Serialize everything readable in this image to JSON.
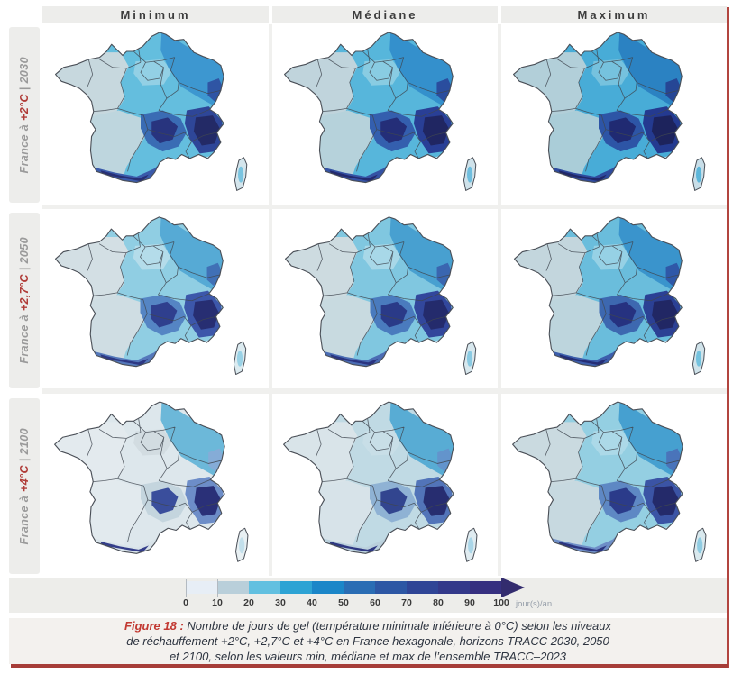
{
  "figure": {
    "columns": [
      "Minimum",
      "Médiane",
      "Maximum"
    ],
    "rows": [
      {
        "prefix": "France à ",
        "temp": "+2°C",
        "suffix": " | 2030"
      },
      {
        "prefix": "France à ",
        "temp": "+2,7°C",
        "suffix": " | 2050"
      },
      {
        "prefix": "France à ",
        "temp": "+4°C",
        "suffix": " | 2100"
      }
    ],
    "colorbar": {
      "ticks": [
        "0",
        "10",
        "20",
        "30",
        "40",
        "50",
        "60",
        "70",
        "80",
        "90",
        "100"
      ],
      "unit": "jour(s)/an",
      "segment_colors": [
        "#e7eef6",
        "#b9cfda",
        "#62c0e0",
        "#2da3d4",
        "#1b86c8",
        "#2a6db4",
        "#2d57a4",
        "#2f4596",
        "#33398a",
        "#363080"
      ],
      "arrow_color": "#332c6e"
    },
    "caption": {
      "label": "Figure 18 :",
      "lines": [
        "Nombre de jours de gel (température minimale inférieure à 0°C) selon les niveaux",
        "de réchauffement +2°C, +2,7°C et +4°C en France hexagonale, horizons TRACC 2030, 2050",
        "et 2100, selon les valeurs min, médiane et max de l’ensemble TRACC–2023"
      ]
    },
    "accent_colors": {
      "figure_red": "#c23a33",
      "frame_red": "#a63d38",
      "band_gray": "#ededeb",
      "caption_bg": "#f3f1ee"
    },
    "cells": [
      {
        "id": "map-2030-minimum",
        "scenario": "+2°C",
        "year": "2030",
        "stat": "Minimum",
        "palette": {
          "base": "#64bede",
          "west": "#c7d8de",
          "sw": "#bed6de",
          "paris": "#93d0e5",
          "ne": "#3d97d0",
          "med": "#dde9ef",
          "massifOuter": "#3a6cb4",
          "massif": "#28347e",
          "alpsOuter": "#2e4698",
          "alps": "#232a66",
          "vosges": "#2f55a4",
          "pyrOuter": "#3a5aaa",
          "pyr": "#272f74",
          "corsica": "#d4e5ec",
          "corsicaSpot": "#7ac4e0"
        }
      },
      {
        "id": "map-2030-mediane",
        "scenario": "+2°C",
        "year": "2030",
        "stat": "Médiane",
        "palette": {
          "base": "#57b6db",
          "west": "#c0d4dc",
          "sw": "#b6d2db",
          "paris": "#89cce2",
          "ne": "#3490cc",
          "med": "#d8e7ee",
          "massifOuter": "#345fae",
          "massif": "#242e78",
          "alpsOuter": "#293f96",
          "alps": "#202662",
          "vosges": "#2a4d9e",
          "pyrOuter": "#3452a4",
          "pyr": "#232a6e",
          "corsica": "#cfe2ea",
          "corsicaSpot": "#6fbede"
        }
      },
      {
        "id": "map-2030-maximum",
        "scenario": "+2°C",
        "year": "2030",
        "stat": "Maximum",
        "palette": {
          "base": "#48acd7",
          "west": "#b2cfd9",
          "sw": "#aacdd8",
          "paris": "#76c2de",
          "ne": "#2b82c2",
          "med": "#cfe1ea",
          "massifOuter": "#2d55a6",
          "massif": "#202a72",
          "alpsOuter": "#243a90",
          "alps": "#1d235c",
          "vosges": "#264695",
          "pyrOuter": "#2e4a9e",
          "pyr": "#202768",
          "corsica": "#c8dee8",
          "corsicaSpot": "#5cb6da"
        }
      },
      {
        "id": "map-2050-minimum",
        "scenario": "+2,7°C",
        "year": "2050",
        "stat": "Minimum",
        "palette": {
          "base": "#90cee3",
          "west": "#d3dfe4",
          "sw": "#cfdde3",
          "paris": "#b4dcea",
          "ne": "#56aad5",
          "med": "#e4edf2",
          "massifOuter": "#5585c4",
          "massif": "#2f3f8e",
          "alpsOuter": "#3c57aa",
          "alps": "#272e72",
          "vosges": "#4070b6",
          "pyrOuter": "#5478bb",
          "pyr": "#2d3884",
          "corsica": "#dcebf0",
          "corsicaSpot": "#9ad2e6"
        }
      },
      {
        "id": "map-2050-mediane",
        "scenario": "+2,7°C",
        "year": "2050",
        "stat": "Médiane",
        "palette": {
          "base": "#80c7e0",
          "west": "#cddbe0",
          "sw": "#c8dae0",
          "paris": "#a8d8e8",
          "ne": "#48a0d0",
          "med": "#dfeaf0",
          "massifOuter": "#4a7bbe",
          "massif": "#2a3a88",
          "alpsOuter": "#32479c",
          "alps": "#242b6c",
          "vosges": "#3a66b0",
          "pyrOuter": "#4a6cb4",
          "pyr": "#2a3480",
          "corsica": "#d8e8ee",
          "corsicaSpot": "#8acae2"
        }
      },
      {
        "id": "map-2050-maximum",
        "scenario": "+2,7°C",
        "year": "2050",
        "stat": "Maximum",
        "palette": {
          "base": "#6abddc",
          "west": "#c3d6dd",
          "sw": "#bdd5dd",
          "paris": "#96d1e5",
          "ne": "#3a94cc",
          "med": "#d8e7ee",
          "massifOuter": "#3d68b0",
          "massif": "#263280",
          "alpsOuter": "#2b4094",
          "alps": "#212764",
          "vosges": "#2f58a8",
          "pyrOuter": "#3c5eac",
          "pyr": "#252e76",
          "corsica": "#d0e3ea",
          "corsicaSpot": "#74c2de"
        }
      },
      {
        "id": "map-2100-minimum",
        "scenario": "+4°C",
        "year": "2100",
        "stat": "Minimum",
        "palette": {
          "base": "#dde7ec",
          "west": "#e3eaee",
          "sw": "#e2eaee",
          "paris": "#d2dce1",
          "ne": "#6cb8d9",
          "med": "#ebf1f4",
          "massifOuter": "#c4d5de",
          "massif": "#3a4e9c",
          "alpsOuter": "#6d8dc8",
          "alps": "#2a3078",
          "vosges": "#85acd7",
          "pyrOuter": "#d8e3e9",
          "pyr": "#343e8a",
          "corsica": "#e8f0f3",
          "corsicaSpot": "#c2dfeb"
        }
      },
      {
        "id": "map-2100-mediane",
        "scenario": "+4°C",
        "year": "2100",
        "stat": "Médiane",
        "palette": {
          "base": "#c0dae4",
          "west": "#d9e4e9",
          "sw": "#d7e3e9",
          "paris": "#c8dee7",
          "ne": "#58acd4",
          "med": "#e6eef2",
          "massifOuter": "#8fb2d4",
          "massif": "#32458f",
          "alpsOuter": "#5274b9",
          "alps": "#272d70",
          "vosges": "#6394cc",
          "pyrOuter": "#bad0dc",
          "pyr": "#2e3882",
          "corsica": "#e0ecf1",
          "corsicaSpot": "#aad6e8"
        }
      },
      {
        "id": "map-2100-maximum",
        "scenario": "+4°C",
        "year": "2100",
        "stat": "Maximum",
        "palette": {
          "base": "#94cfe2",
          "west": "#cadae0",
          "sw": "#c7d9e0",
          "paris": "#acd9e8",
          "ne": "#46a0d0",
          "med": "#dfe9ef",
          "massifOuter": "#5e88c4",
          "massif": "#2b3b8a",
          "alpsOuter": "#3b54a5",
          "alps": "#242a6a",
          "vosges": "#4a74ba",
          "pyrOuter": "#6e8ec7",
          "pyr": "#2b3580",
          "corsica": "#d9e9ee",
          "corsicaSpot": "#90cce2"
        }
      }
    ]
  }
}
